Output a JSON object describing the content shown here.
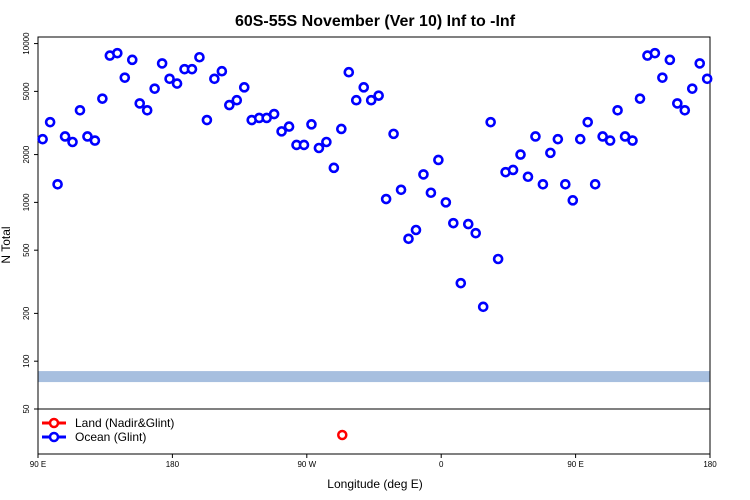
{
  "chart_data": {
    "type": "scatter",
    "title": "60S-55S November (Ver 10)   Inf to -Inf",
    "xlabel": "Longitude (deg E)",
    "ylabel": "N Total",
    "y_scale": "log",
    "ylim": [
      50,
      11000
    ],
    "xlim": [
      0,
      360
    ],
    "x_ticks": [
      {
        "value": 0,
        "label": "90 E"
      },
      {
        "value": 72,
        "label": "180"
      },
      {
        "value": 144,
        "label": "90 W"
      },
      {
        "value": 216,
        "label": "0"
      },
      {
        "value": 288,
        "label": "90 E"
      },
      {
        "value": 360,
        "label": "180"
      }
    ],
    "y_ticks": [
      {
        "value": 10000,
        "label": "10000"
      },
      {
        "value": 5000,
        "label": "5000"
      },
      {
        "value": 2000,
        "label": "2000"
      },
      {
        "value": 1000,
        "label": "1000"
      },
      {
        "value": 500,
        "label": "500"
      },
      {
        "value": 200,
        "label": "200"
      },
      {
        "value": 100,
        "label": "100"
      },
      {
        "value": 50,
        "label": "50"
      }
    ],
    "band": {
      "value": 80,
      "color": "#a7bfdf"
    },
    "legend": {
      "position": "bottom-left",
      "entries": [
        {
          "label": "Land (Nadir&Glint)",
          "color": "#ff0000"
        },
        {
          "label": "Ocean (Glint)",
          "color": "#0000ff"
        }
      ]
    },
    "land_marker": {
      "x": 163,
      "color": "#ff0000"
    },
    "series": [
      {
        "name": "Ocean (Glint)",
        "color": "#0000ff",
        "x": [
          2.5,
          6.5,
          10.5,
          14.5,
          18.5,
          22.5,
          26.5,
          30.5,
          34.5,
          38.5,
          42.5,
          46.5,
          50.5,
          54.5,
          58.5,
          62.5,
          66.5,
          70.5,
          74.5,
          78.5,
          82.5,
          86.5,
          90.5,
          94.5,
          98.5,
          102.5,
          106.5,
          110.5,
          114.5,
          118.5,
          122.5,
          126.5,
          130.5,
          134.5,
          138.5,
          142.5,
          146.5,
          150.5,
          154.5,
          158.5,
          162.5,
          166.5,
          170.5,
          174.5,
          178.5,
          182.5,
          186.5,
          190.5,
          194.5,
          198.5,
          202.5,
          206.5,
          210.5,
          214.5,
          218.5,
          222.5,
          226.5,
          230.5,
          234.5,
          238.5,
          242.5,
          246.5,
          250.5,
          254.5,
          258.5,
          262.5,
          266.5,
          270.5,
          274.5,
          278.5,
          282.5,
          286.5,
          290.5,
          294.5,
          298.5,
          302.5,
          306.5,
          310.5,
          314.5,
          318.5,
          322.5,
          326.5,
          330.5,
          334.5,
          338.5,
          342.5,
          346.5,
          350.5,
          354.5,
          358.5
        ],
        "values": [
          2500,
          3200,
          1300,
          2600,
          2400,
          3800,
          2600,
          2450,
          4500,
          8400,
          8700,
          6100,
          7900,
          4200,
          3800,
          5200,
          7500,
          6000,
          5600,
          6900,
          6900,
          8200,
          3300,
          6000,
          6700,
          4100,
          4400,
          5300,
          3300,
          3400,
          3400,
          3600,
          2800,
          3000,
          2300,
          2300,
          3100,
          2200,
          2400,
          1650,
          2900,
          6600,
          4400,
          5300,
          4400,
          4700,
          1050,
          2700,
          1200,
          590,
          670,
          1500,
          1150,
          1850,
          1000,
          740,
          310,
          730,
          640,
          220,
          3200,
          440,
          1550,
          1600,
          2000,
          1450,
          2600,
          1300,
          2050,
          2500,
          1300,
          1030,
          2500,
          3200,
          1300,
          2600,
          2450,
          3800,
          2600,
          2450,
          4500,
          8400,
          8700,
          6100,
          7900,
          4200,
          3800,
          5200,
          7500,
          6000
        ]
      }
    ]
  }
}
